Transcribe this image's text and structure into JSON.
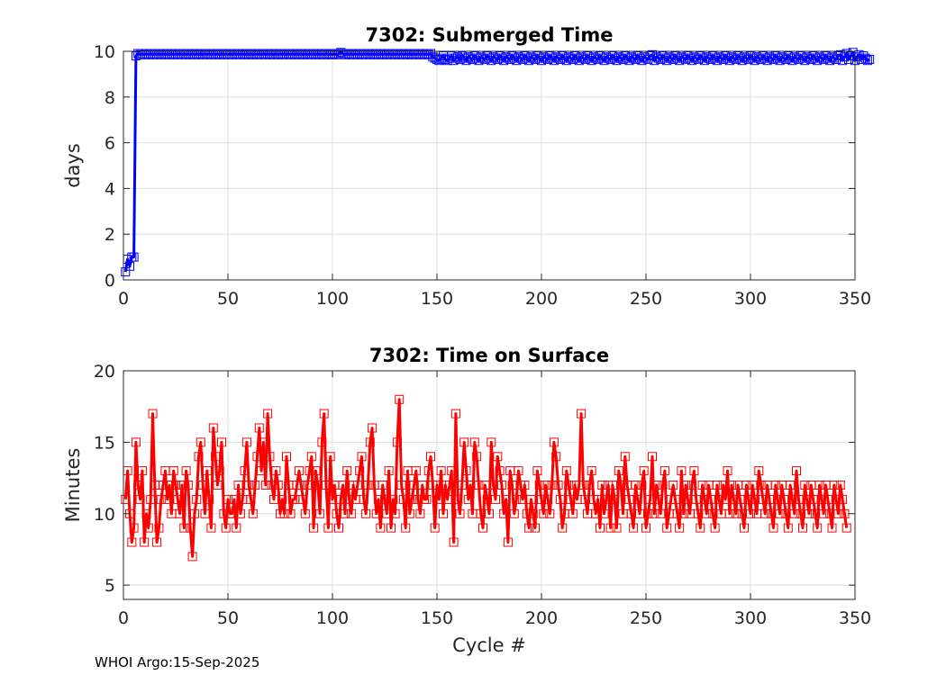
{
  "footer": "WHOI Argo:15-Sep-2025",
  "chart_data": [
    {
      "type": "line",
      "title": "7302: Submerged Time",
      "xlabel": "",
      "ylabel": "days",
      "xlim": [
        0,
        350
      ],
      "ylim": [
        0,
        10
      ],
      "xticks": [
        0,
        50,
        100,
        150,
        200,
        250,
        300,
        350
      ],
      "yticks": [
        0,
        2,
        4,
        6,
        8,
        10
      ],
      "grid": true,
      "color": "#0000ff",
      "marker": "square",
      "series": [
        {
          "name": "Submerged Time",
          "x_start": 1,
          "values": [
            0.35,
            0.9,
            0.6,
            1.0,
            1.0,
            9.8,
            9.9,
            9.85,
            9.9,
            9.85,
            9.9,
            9.85,
            9.9,
            9.85,
            9.9,
            9.85,
            9.9,
            9.85,
            9.9,
            9.85,
            9.9,
            9.85,
            9.9,
            9.85,
            9.9,
            9.85,
            9.9,
            9.85,
            9.9,
            9.85,
            9.9,
            9.85,
            9.9,
            9.85,
            9.9,
            9.85,
            9.9,
            9.85,
            9.9,
            9.85,
            9.9,
            9.85,
            9.9,
            9.85,
            9.9,
            9.85,
            9.9,
            9.85,
            9.9,
            9.85,
            9.9,
            9.85,
            9.9,
            9.85,
            9.9,
            9.85,
            9.9,
            9.85,
            9.9,
            9.85,
            9.9,
            9.85,
            9.9,
            9.85,
            9.9,
            9.85,
            9.9,
            9.85,
            9.9,
            9.85,
            9.9,
            9.85,
            9.9,
            9.85,
            9.9,
            9.85,
            9.9,
            9.85,
            9.9,
            9.85,
            9.9,
            9.85,
            9.9,
            9.85,
            9.9,
            9.85,
            9.9,
            9.85,
            9.9,
            9.85,
            9.9,
            9.85,
            9.9,
            9.85,
            9.9,
            9.85,
            9.9,
            9.85,
            9.9,
            9.85,
            9.9,
            9.85,
            9.9,
            9.95,
            9.9,
            9.85,
            9.9,
            9.85,
            9.9,
            9.85,
            9.9,
            9.85,
            9.9,
            9.85,
            9.9,
            9.85,
            9.9,
            9.85,
            9.9,
            9.85,
            9.9,
            9.85,
            9.9,
            9.85,
            9.9,
            9.85,
            9.9,
            9.85,
            9.9,
            9.85,
            9.9,
            9.85,
            9.9,
            9.85,
            9.9,
            9.85,
            9.9,
            9.85,
            9.9,
            9.85,
            9.9,
            9.85,
            9.9,
            9.85,
            9.9,
            9.85,
            9.9,
            9.75,
            9.7,
            9.65,
            9.6,
            9.7,
            9.8,
            9.65,
            9.6,
            9.7,
            9.8,
            9.6,
            9.7,
            9.75,
            9.65,
            9.8,
            9.7,
            9.6,
            9.75,
            9.7,
            9.65,
            9.8,
            9.7,
            9.6,
            9.75,
            9.7,
            9.65,
            9.8,
            9.7,
            9.6,
            9.75,
            9.7,
            9.65,
            9.8,
            9.7,
            9.6,
            9.75,
            9.7,
            9.65,
            9.8,
            9.7,
            9.6,
            9.75,
            9.7,
            9.65,
            9.8,
            9.7,
            9.6,
            9.75,
            9.7,
            9.65,
            9.8,
            9.7,
            9.6,
            9.75,
            9.7,
            9.65,
            9.8,
            9.7,
            9.6,
            9.75,
            9.7,
            9.65,
            9.8,
            9.7,
            9.6,
            9.75,
            9.7,
            9.65,
            9.8,
            9.7,
            9.6,
            9.75,
            9.7,
            9.65,
            9.8,
            9.7,
            9.6,
            9.75,
            9.7,
            9.65,
            9.8,
            9.7,
            9.6,
            9.75,
            9.7,
            9.65,
            9.8,
            9.7,
            9.6,
            9.75,
            9.7,
            9.65,
            9.8,
            9.7,
            9.6,
            9.75,
            9.7,
            9.65,
            9.8,
            9.7,
            9.6,
            9.75,
            9.7,
            9.65,
            9.8,
            9.85,
            9.6,
            9.75,
            9.7,
            9.65,
            9.8,
            9.7,
            9.6,
            9.75,
            9.7,
            9.65,
            9.8,
            9.7,
            9.6,
            9.75,
            9.7,
            9.65,
            9.8,
            9.7,
            9.6,
            9.75,
            9.7,
            9.65,
            9.8,
            9.7,
            9.6,
            9.75,
            9.7,
            9.65,
            9.8,
            9.7,
            9.6,
            9.75,
            9.7,
            9.65,
            9.8,
            9.7,
            9.6,
            9.75,
            9.7,
            9.65,
            9.8,
            9.7,
            9.6,
            9.75,
            9.7,
            9.65,
            9.8,
            9.7,
            9.6,
            9.75,
            9.7,
            9.65,
            9.8,
            9.7,
            9.6,
            9.75,
            9.7,
            9.65,
            9.8,
            9.7,
            9.6,
            9.75,
            9.7,
            9.65,
            9.8,
            9.7,
            9.6,
            9.75,
            9.7,
            9.65,
            9.8,
            9.7,
            9.6,
            9.75,
            9.7,
            9.65,
            9.8,
            9.7,
            9.6,
            9.75,
            9.7,
            9.65,
            9.8,
            9.7,
            9.6,
            9.75,
            9.7,
            9.65,
            9.8,
            9.85,
            9.6,
            9.75,
            9.9,
            9.65,
            9.8,
            9.95,
            9.6,
            9.75,
            9.85,
            9.65,
            9.8,
            9.7,
            9.6,
            9.65
          ]
        }
      ]
    },
    {
      "type": "line",
      "title": "7302: Time on Surface",
      "xlabel": "Cycle #",
      "ylabel": "Minutes",
      "xlim": [
        0,
        350
      ],
      "ylim": [
        4,
        20
      ],
      "xticks": [
        0,
        50,
        100,
        150,
        200,
        250,
        300,
        350
      ],
      "yticks": [
        5,
        10,
        15,
        20
      ],
      "grid": true,
      "color": "#ff0000",
      "marker": "square",
      "series": [
        {
          "name": "Time on Surface",
          "x_start": 1,
          "values": [
            11,
            13,
            10,
            8,
            9,
            15,
            12,
            11,
            13,
            8,
            10,
            9,
            11,
            17,
            12,
            8,
            9,
            11,
            12,
            13,
            11,
            12,
            10,
            13,
            12,
            11,
            10,
            12,
            9,
            13,
            12,
            9,
            7,
            10,
            11,
            14,
            15,
            12,
            10,
            13,
            11,
            9,
            16,
            14,
            12,
            13,
            15,
            10,
            9,
            11,
            10,
            10,
            11,
            9,
            12,
            10,
            11,
            13,
            15,
            12,
            11,
            10,
            12,
            14,
            16,
            13,
            15,
            12,
            17,
            14,
            12,
            11,
            13,
            12,
            10,
            11,
            10,
            14,
            12,
            10,
            11,
            11,
            12,
            13,
            12,
            11,
            10,
            12,
            13,
            14,
            9,
            13,
            12,
            10,
            15,
            17,
            12,
            9,
            14,
            11,
            12,
            10,
            9,
            11,
            12,
            10,
            13,
            11,
            10,
            12,
            11,
            12,
            13,
            14,
            11,
            10,
            12,
            15,
            16,
            12,
            10,
            11,
            9,
            12,
            11,
            10,
            13,
            9,
            11,
            10,
            15,
            18,
            12,
            11,
            9,
            13,
            10,
            11,
            12,
            13,
            11,
            10,
            12,
            11,
            11,
            13,
            14,
            12,
            9,
            12,
            11,
            13,
            10,
            12,
            11,
            12,
            13,
            8,
            17,
            11,
            10,
            12,
            15,
            13,
            11,
            12,
            10,
            15,
            14,
            12,
            10,
            9,
            12,
            11,
            10,
            15,
            12,
            11,
            14,
            13,
            12,
            10,
            11,
            8,
            13,
            12,
            10,
            11,
            13,
            12,
            11,
            12,
            10,
            9,
            11,
            10,
            9,
            13,
            12,
            11,
            10,
            12,
            11,
            10,
            12,
            15,
            14,
            12,
            11,
            9,
            10,
            13,
            12,
            11,
            10,
            12,
            11,
            12,
            17,
            12,
            11,
            10,
            12,
            13,
            11,
            10,
            11,
            9,
            12,
            10,
            11,
            12,
            9,
            12,
            11,
            9,
            13,
            12,
            10,
            14,
            12,
            11,
            10,
            9,
            12,
            11,
            10,
            12,
            13,
            9,
            10,
            11,
            14,
            10,
            12,
            11,
            10,
            12,
            13,
            9,
            10,
            11,
            12,
            11,
            10,
            9,
            13,
            10,
            12,
            11,
            10,
            12,
            13,
            11,
            10,
            9,
            12,
            11,
            10,
            12,
            11,
            10,
            9,
            12,
            11,
            10,
            12,
            11,
            13,
            10,
            12,
            11,
            10,
            12,
            11,
            10,
            9,
            12,
            11,
            10,
            12,
            11,
            10,
            13,
            12,
            11,
            10,
            12,
            11,
            10,
            9,
            12,
            11,
            10,
            12,
            11,
            10,
            9,
            12,
            11,
            10,
            13,
            11,
            10,
            9,
            12,
            11,
            10,
            12,
            11,
            10,
            9,
            12,
            11,
            10,
            12,
            11,
            10,
            9,
            12,
            11,
            10,
            12,
            11,
            10,
            9
          ]
        }
      ]
    }
  ]
}
